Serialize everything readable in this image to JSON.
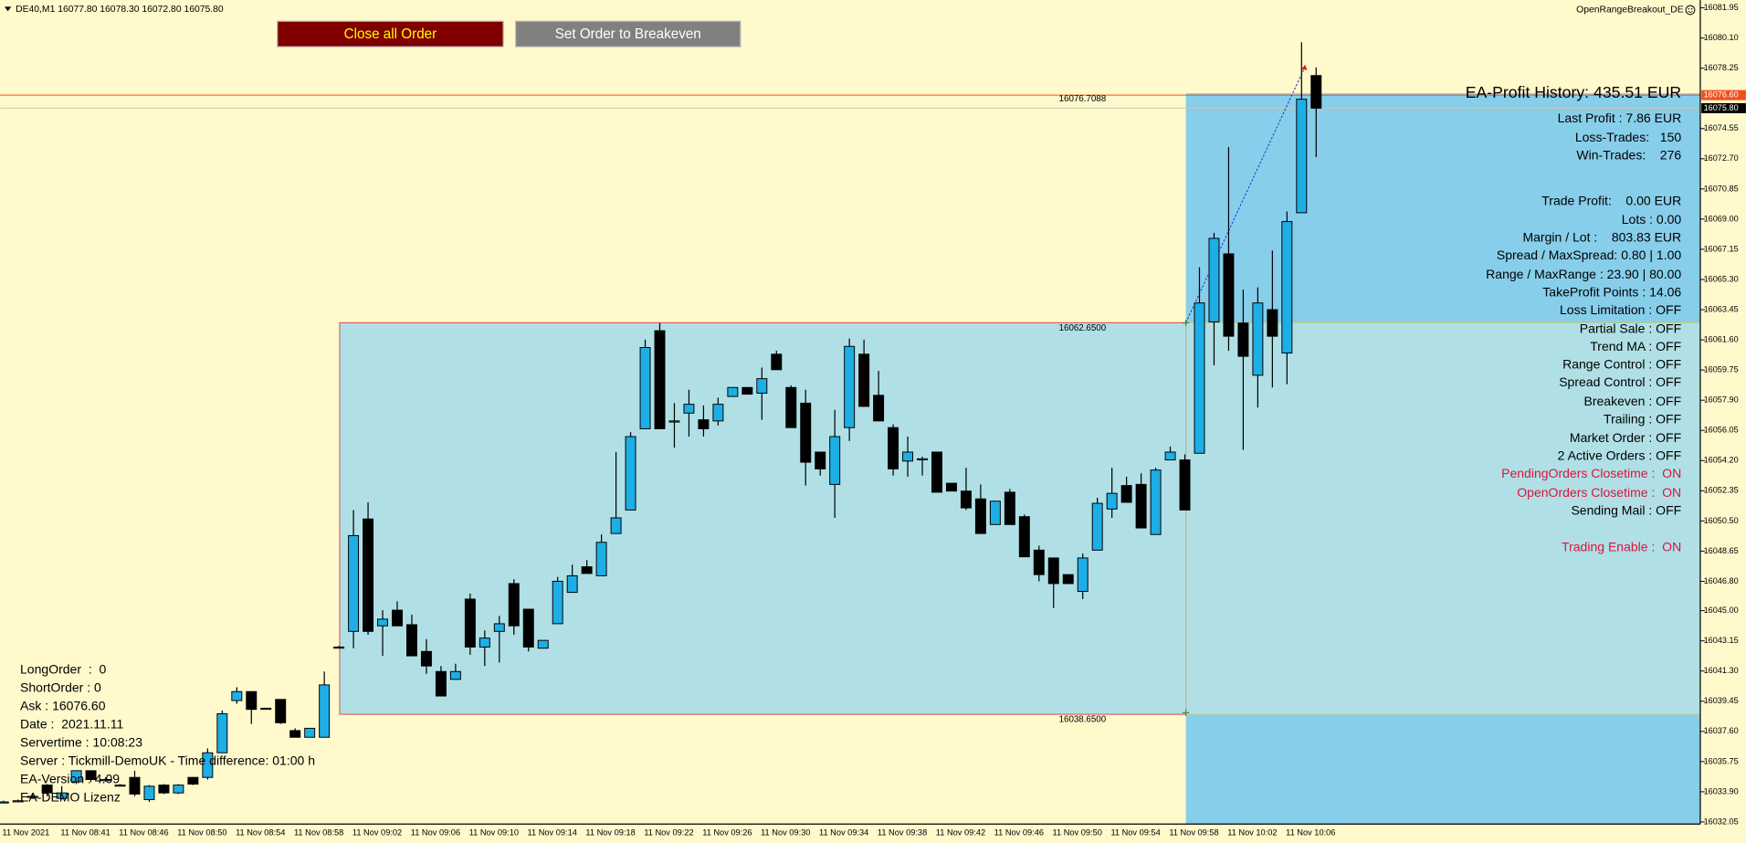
{
  "header": {
    "symbol": "DE40,M1  16077.80 16078.30 16072.80 16075.80",
    "expert": "OpenRangeBreakout_DE"
  },
  "buttons": [
    {
      "label": "Close all Order",
      "color": "#800000",
      "text_color": "#ffff00"
    },
    {
      "label": "Set Order to Breakeven",
      "color": "#808080",
      "text_color": "#ffffff"
    }
  ],
  "left_panel": [
    "LongOrder  :  0",
    "ShortOrder : 0",
    "Ask : 16076.60",
    "Date :  2021.11.11",
    "Servertime : 10:08:23",
    "Server : Tickmill-DemoUK - Time difference: 01:00 h",
    "EA-Version : 4.09",
    "EA-DEMO Lizenz"
  ],
  "right_panel": {
    "title": "EA-Profit History: 435.51 EUR",
    "lines": [
      {
        "text": "Last Profit : 7.86 EUR"
      },
      {
        "text": "Loss-Trades:   150"
      },
      {
        "text": "Win-Trades:    276"
      },
      {
        "text": "Trade Profit:    0.00 EUR"
      },
      {
        "text": "Lots : 0.00"
      },
      {
        "text": "Margin / Lot :    803.83 EUR"
      },
      {
        "text": "Spread / MaxSpread: 0.80 | 1.00"
      },
      {
        "text": "Range / MaxRange : 23.90 | 80.00"
      },
      {
        "text": "TakeProfit Points : 14.06"
      },
      {
        "text": "Loss Limitation : OFF"
      },
      {
        "text": "Partial Sale : OFF"
      },
      {
        "text": "Trend MA : OFF"
      },
      {
        "text": "Range Control : OFF"
      },
      {
        "text": "Spread Control : OFF"
      },
      {
        "text": "Breakeven : OFF"
      },
      {
        "text": "Trailing : OFF"
      },
      {
        "text": "Market Order : OFF"
      },
      {
        "text": "2 Active Orders : OFF"
      },
      {
        "text": "PendingOrders Closetime :  ON",
        "color": "#dc143c"
      },
      {
        "text": "OpenOrders Closetime :  ON",
        "color": "#dc143c"
      },
      {
        "text": "Sending Mail : OFF"
      },
      {
        "text": "Trading Enable :  ON",
        "color": "#dc143c"
      }
    ]
  },
  "chart_data": {
    "type": "candlestick",
    "categories": [
      "11 Nov 2021",
      null,
      null,
      null,
      "11 Nov 08:41",
      null,
      null,
      null,
      "11 Nov 08:46",
      null,
      null,
      null,
      "11 Nov 08:50",
      null,
      null,
      null,
      "11 Nov 08:54",
      null,
      null,
      null,
      "11 Nov 08:58",
      null,
      null,
      null,
      "11 Nov 09:02",
      null,
      null,
      null,
      "11 Nov 09:06",
      null,
      null,
      null,
      "11 Nov 09:10",
      null,
      null,
      null,
      "11 Nov 09:14",
      null,
      null,
      null,
      "11 Nov 09:18",
      null,
      null,
      null,
      "11 Nov 09:22",
      null,
      null,
      null,
      "11 Nov 09:26",
      null,
      null,
      null,
      "11 Nov 09:30",
      null,
      null,
      null,
      "11 Nov 09:34",
      null,
      null,
      null,
      "11 Nov 09:38",
      null,
      null,
      null,
      "11 Nov 09:42",
      null,
      null,
      null,
      "11 Nov 09:46",
      null,
      null,
      null,
      "11 Nov 09:50",
      null,
      null,
      null,
      "11 Nov 09:54",
      null,
      null,
      null,
      "11 Nov 09:58",
      null,
      null,
      null,
      "11 Nov 10:02",
      null,
      null,
      null,
      "11 Nov 10:06",
      null,
      null
    ],
    "open": [
      16033.28,
      16033.35,
      16033.62,
      16034.31,
      16033.49,
      16034.51,
      16035.19,
      16034.65,
      16034.31,
      16034.78,
      16033.42,
      16034.31,
      16033.83,
      16034.78,
      16034.78,
      16036.29,
      16039.49,
      16040.04,
      16039.02,
      16039.56,
      16037.65,
      16037.24,
      16037.24,
      16042.77,
      16043.73,
      16050.62,
      16044.07,
      16045.03,
      16044.14,
      16042.5,
      16041.27,
      16040.79,
      16045.71,
      16042.77,
      16043.73,
      16046.66,
      16045.09,
      16042.7,
      16044.2,
      16046.12,
      16047.69,
      16047.14,
      16049.73,
      16051.17,
      16056.15,
      16062.16,
      16056.63,
      16057.11,
      16056.7,
      16056.63,
      16058.13,
      16058.68,
      16058.33,
      16060.72,
      16058.68,
      16057.72,
      16054.72,
      16052.74,
      16056.22,
      16060.72,
      16058.2,
      16056.22,
      16054.17,
      16054.31,
      16054.72,
      16052.81,
      16052.33,
      16051.85,
      16050.28,
      16052.26,
      16050.76,
      16048.71,
      16048.23,
      16047.21,
      16046.18,
      16048.71,
      16051.23,
      16052.67,
      16052.74,
      16049.67,
      16054.24,
      16054.24,
      16054.65,
      16062.7,
      16066.87,
      16062.63,
      16059.43,
      16063.45,
      16060.79,
      16069.39,
      16077.8
    ],
    "high": [
      16033.35,
      16033.42,
      16033.76,
      16034.37,
      16034.24,
      16035.19,
      16035.19,
      16034.78,
      16034.37,
      16035.19,
      16034.31,
      16034.37,
      16034.37,
      16034.78,
      16036.56,
      16038.88,
      16040.31,
      16040.04,
      16039.02,
      16039.56,
      16037.79,
      16037.79,
      16041.27,
      16042.84,
      16051.17,
      16051.64,
      16045.03,
      16045.57,
      16044.75,
      16043.25,
      16041.61,
      16041.75,
      16046.05,
      16043.79,
      16044.68,
      16046.93,
      16045.09,
      16043.18,
      16047.07,
      16047.82,
      16048.1,
      16049.67,
      16054.72,
      16055.94,
      16061.61,
      16062.63,
      16057.72,
      16058.54,
      16057.58,
      16058.06,
      16058.68,
      16058.68,
      16059.9,
      16060.93,
      16058.81,
      16058.54,
      16054.72,
      16057.31,
      16061.68,
      16061.61,
      16059.7,
      16056.42,
      16055.67,
      16054.44,
      16054.72,
      16052.81,
      16053.76,
      16052.74,
      16051.71,
      16052.46,
      16050.89,
      16048.98,
      16048.23,
      16047.21,
      16048.5,
      16051.92,
      16053.76,
      16053.21,
      16053.42,
      16053.76,
      16055.06,
      16054.58,
      16066.05,
      16068.16,
      16073.42,
      16064.68,
      16064.82,
      16067.07,
      16069.46,
      16079.84,
      16078.3
    ],
    "low": [
      16033.21,
      16033.28,
      16033.49,
      16033.62,
      16033.42,
      16034.37,
      16034.51,
      16034.51,
      16034.24,
      16033.62,
      16033.28,
      16033.76,
      16033.76,
      16034.31,
      16034.65,
      16036.29,
      16039.29,
      16038.06,
      16038.95,
      16038.06,
      16037.24,
      16037.24,
      16037.24,
      16042.7,
      16042.7,
      16043.52,
      16042.23,
      16044.07,
      16042.23,
      16041.13,
      16039.77,
      16040.79,
      16042.29,
      16041.61,
      16041.82,
      16043.52,
      16042.5,
      16042.7,
      16044.2,
      16046.12,
      16047.28,
      16047.14,
      16049.73,
      16051.17,
      16056.15,
      16056.15,
      16054.99,
      16055.67,
      16055.67,
      16056.35,
      16058.13,
      16058.27,
      16056.7,
      16059.77,
      16056.22,
      16052.67,
      16053.28,
      16050.69,
      16055.4,
      16057.52,
      16056.63,
      16053.28,
      16053.21,
      16053.28,
      16052.26,
      16052.33,
      16051.17,
      16049.73,
      16050.28,
      16050.28,
      16048.3,
      16046.8,
      16045.16,
      16046.66,
      16045.71,
      16048.71,
      16050.69,
      16051.64,
      16050.07,
      16049.67,
      16054.24,
      16051.17,
      16054.65,
      16060.04,
      16060.93,
      16054.85,
      16057.45,
      16058.68,
      16058.88,
      16069.39,
      16072.8
    ],
    "close": [
      16033.28,
      16033.35,
      16033.62,
      16033.83,
      16033.83,
      16035.19,
      16034.65,
      16034.65,
      16034.31,
      16033.76,
      16034.24,
      16033.83,
      16034.31,
      16034.37,
      16036.29,
      16038.68,
      16040.04,
      16038.95,
      16039.02,
      16038.13,
      16037.24,
      16037.79,
      16040.45,
      16042.77,
      16049.6,
      16043.73,
      16044.48,
      16044.07,
      16042.23,
      16041.61,
      16039.77,
      16041.27,
      16042.77,
      16043.32,
      16044.2,
      16044.07,
      16042.77,
      16043.18,
      16046.8,
      16047.14,
      16047.28,
      16049.19,
      16050.69,
      16055.67,
      16061.13,
      16056.15,
      16056.63,
      16057.65,
      16056.15,
      16057.65,
      16058.68,
      16058.27,
      16059.22,
      16059.77,
      16056.22,
      16054.1,
      16053.69,
      16055.67,
      16061.2,
      16057.52,
      16056.63,
      16053.69,
      16054.72,
      16054.31,
      16052.26,
      16052.33,
      16051.3,
      16049.73,
      16051.71,
      16050.28,
      16048.3,
      16047.21,
      16046.66,
      16046.66,
      16048.23,
      16051.58,
      16052.19,
      16051.64,
      16050.07,
      16053.62,
      16054.72,
      16051.17,
      16063.86,
      16067.82,
      16061.82,
      16060.59,
      16063.86,
      16061.82,
      16068.85,
      16076.35,
      16075.8
    ],
    "up_color": "#1eaee6",
    "down_color": "#000000",
    "ylim": [
      16031.92,
      16082.43
    ],
    "yticks": [
      16081.95,
      {
        "value": 16080.1,
        "label": "16080.10"
      },
      16078.25,
      16074.55,
      {
        "value": 16072.7,
        "label": "16072.70"
      },
      16070.85,
      {
        "value": 16069,
        "label": "16069.00"
      },
      16067.15,
      {
        "value": 16065.3,
        "label": "16065.30"
      },
      16063.45,
      {
        "value": 16061.6,
        "label": "16061.60"
      },
      16059.75,
      {
        "value": 16057.9,
        "label": "16057.90"
      },
      16056.05,
      {
        "value": 16054.2,
        "label": "16054.20"
      },
      16052.35,
      {
        "value": 16050.5,
        "label": "16050.50"
      },
      16048.65,
      {
        "value": 16046.8,
        "label": "16046.80"
      },
      {
        "value": 16045,
        "label": "16045.00"
      },
      16043.15,
      {
        "value": 16041.3,
        "label": "16041.30"
      },
      16039.45,
      {
        "value": 16037.6,
        "label": "16037.60"
      },
      16035.75,
      {
        "value": 16033.9,
        "label": "16033.90"
      },
      16032.05
    ],
    "price_labels": [
      {
        "value": 16076.6,
        "label": "16076.60",
        "color": "#f0501e"
      },
      {
        "value": 16075.8,
        "label": "16075.80",
        "color": "#000000"
      }
    ],
    "annotations": [
      {
        "value": 16076.7088
      },
      {
        "value": 16062.65,
        "label": "16062.6500"
      },
      {
        "value": 16038.65,
        "label": "16038.6500"
      }
    ]
  }
}
